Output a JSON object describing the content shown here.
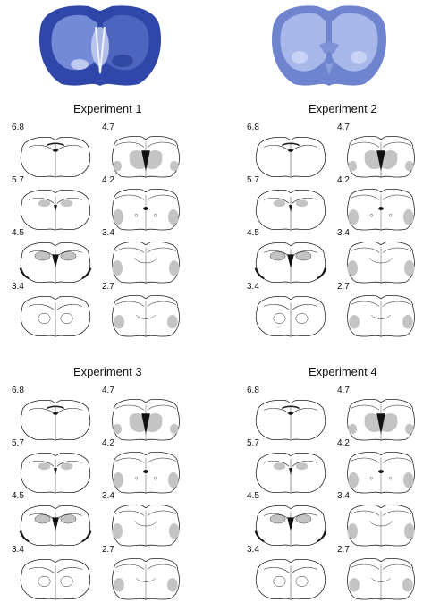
{
  "colors": {
    "stain_dark": "#2f47a8",
    "stain_light": "#9fb0e6",
    "outline": "#222222",
    "lesion_gray": "#c4c4c4",
    "lesion_black": "#111111"
  },
  "photos": [
    {
      "name": "brain-photo-left",
      "style": "lesioned"
    },
    {
      "name": "brain-photo-right",
      "style": "intact"
    }
  ],
  "experiments": [
    {
      "title": "Experiment 1",
      "left_labels": [
        "6.8",
        "5.7",
        "4.5",
        "3.4"
      ],
      "right_labels": [
        "4.7",
        "4.2",
        "3.4",
        "2.7"
      ]
    },
    {
      "title": "Experiment 2",
      "left_labels": [
        "6.8",
        "5.7",
        "4.5",
        "3.4"
      ],
      "right_labels": [
        "4.7",
        "4.2",
        "3.4",
        "2.7"
      ]
    },
    {
      "title": "Experiment 3",
      "left_labels": [
        "6.8",
        "5.7",
        "4.5",
        "3.4"
      ],
      "right_labels": [
        "4.7",
        "4.2",
        "3.4",
        "2.7"
      ]
    },
    {
      "title": "Experiment 4",
      "left_labels": [
        "6.8",
        "5.7",
        "4.5",
        "3.4"
      ],
      "right_labels": [
        "4.7",
        "4.2",
        "3.4",
        "2.7"
      ]
    }
  ]
}
